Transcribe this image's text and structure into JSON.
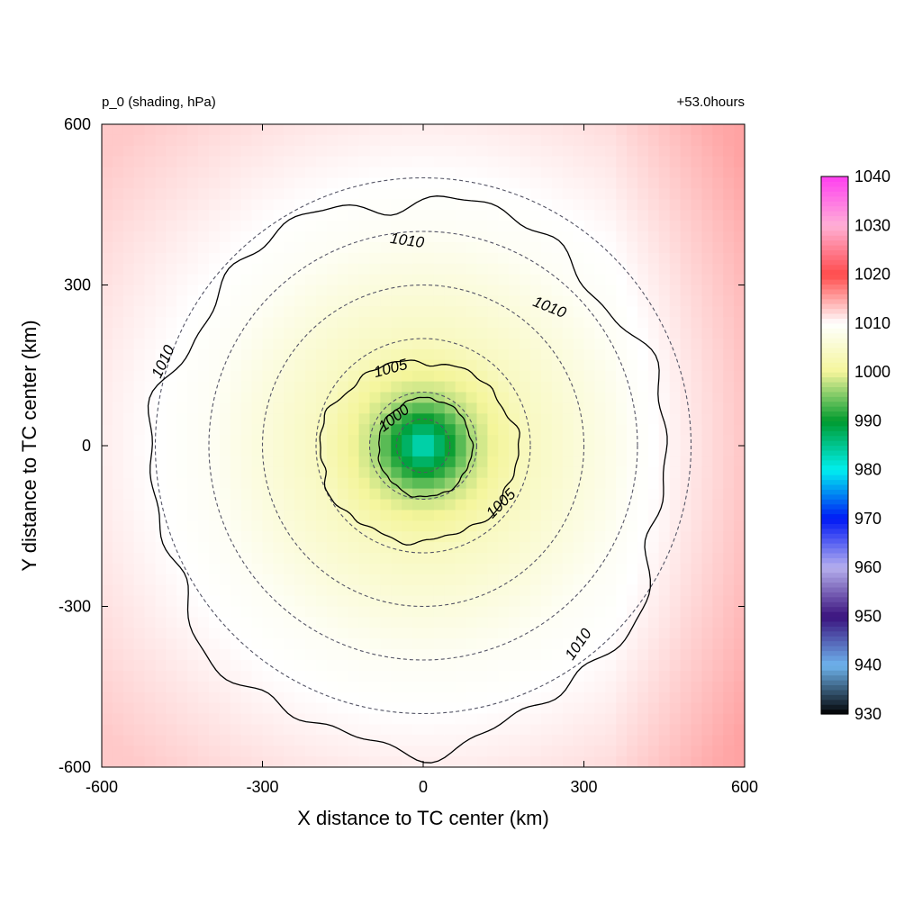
{
  "chart_data": {
    "type": "heatmap",
    "title_left": "p_0 (shading, hPa)",
    "title_right": "+53.0hours",
    "xlabel": "X distance to TC center (km)",
    "ylabel": "Y distance to TC center (km)",
    "xlim": [
      -600,
      600
    ],
    "ylim": [
      -600,
      600
    ],
    "x_ticks": [
      -600,
      -300,
      0,
      300,
      600
    ],
    "y_ticks": [
      -600,
      -300,
      0,
      300,
      600
    ],
    "x_tick_labels": [
      "-600",
      "-300",
      "0",
      "300",
      "600"
    ],
    "y_tick_labels": [
      "-600",
      "-300",
      "0",
      "300",
      "600"
    ],
    "center_pressure_hPa": 980,
    "field_description_values": {
      "center": 980,
      "r100": 998,
      "r200": 1004,
      "r400": 1009,
      "edge": 1013
    },
    "range_rings_km": [
      50,
      100,
      200,
      300,
      400,
      500
    ],
    "contours": [
      {
        "level": 1000,
        "label": "1000"
      },
      {
        "level": 1005,
        "label": "1005"
      },
      {
        "level": 1010,
        "label": "1010"
      }
    ],
    "colorbar": {
      "min": 930,
      "max": 1040,
      "ticks": [
        930,
        940,
        950,
        960,
        970,
        980,
        990,
        1000,
        1010,
        1020,
        1030,
        1040
      ],
      "tick_labels": [
        "930",
        "940",
        "950",
        "960",
        "970",
        "980",
        "990",
        "1000",
        "1010",
        "1020",
        "1030",
        "1040"
      ],
      "stops": [
        {
          "v": 930,
          "c": "#000000"
        },
        {
          "v": 940,
          "c": "#6fb4ee"
        },
        {
          "v": 950,
          "c": "#3a127d"
        },
        {
          "v": 960,
          "c": "#b6b0ee"
        },
        {
          "v": 970,
          "c": "#0018f5"
        },
        {
          "v": 980,
          "c": "#00f0f0"
        },
        {
          "v": 990,
          "c": "#009a2e"
        },
        {
          "v": 1000,
          "c": "#f4f59a"
        },
        {
          "v": 1010,
          "c": "#ffffff"
        },
        {
          "v": 1020,
          "c": "#ff4b4b"
        },
        {
          "v": 1030,
          "c": "#ffb0d6"
        },
        {
          "v": 1040,
          "c": "#ff3ff0"
        }
      ]
    }
  }
}
